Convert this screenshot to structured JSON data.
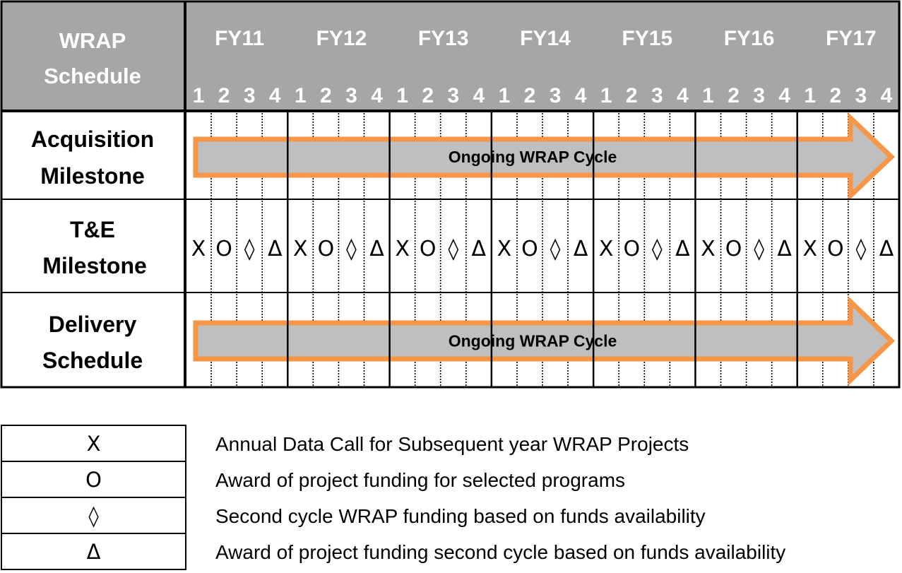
{
  "header": {
    "title_line1": "WRAP",
    "title_line2": "Schedule",
    "fiscal_years": [
      "FY11",
      "FY12",
      "FY13",
      "FY14",
      "FY15",
      "FY16",
      "FY17"
    ],
    "quarters": [
      "1",
      "2",
      "3",
      "4"
    ]
  },
  "rows": [
    {
      "label_line1": "Acquisition",
      "label_line2": "Milestone",
      "arrow_label": "Ongoing WRAP Cycle"
    },
    {
      "label_line1": "T&E",
      "label_line2": "Milestone",
      "symbols": [
        "X",
        "O",
        "◊",
        "Δ"
      ]
    },
    {
      "label_line1": "Delivery",
      "label_line2": "Schedule",
      "arrow_label": "Ongoing WRAP Cycle"
    }
  ],
  "legend": [
    {
      "symbol": "X",
      "text": "Annual Data Call for Subsequent year WRAP Projects"
    },
    {
      "symbol": "O",
      "text": "Award of project funding for selected programs"
    },
    {
      "symbol": "◊",
      "text": "Second cycle WRAP funding based on funds availability"
    },
    {
      "symbol": "Δ",
      "text": "Award of project funding second cycle based on funds availability"
    }
  ],
  "colors": {
    "header_bg": "#a6a6a6",
    "header_text": "#ffffff",
    "arrow_fill": "#bfbfbf",
    "arrow_stroke": "#f79646",
    "grid_line": "#000000"
  }
}
